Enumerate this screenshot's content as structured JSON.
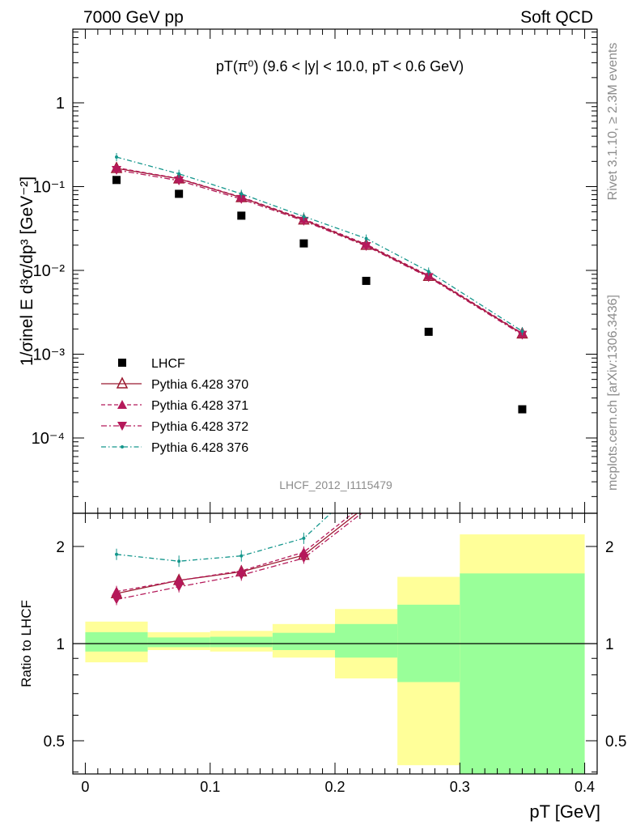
{
  "header": {
    "left": "7000 GeV pp",
    "right": "Soft QCD"
  },
  "side_labels": {
    "rivet": "Rivet 3.1.10, ≥ 2.3M events",
    "mcplots": "mcplots.cern.ch [arXiv:1306.3436]"
  },
  "chart_data": [
    {
      "type": "scatter",
      "panel": "main",
      "title": "pT(π⁰) (9.6 < |y| < 10.0, pT < 0.6 GeV)",
      "ylabel": "1/σinel E d³σ/dp³ [GeV⁻²]",
      "xlim": [
        -0.01,
        0.41
      ],
      "ylim": [
        1e-05,
        5
      ],
      "yscale": "log",
      "ytick_labels": [
        "1",
        "10⁻¹",
        "10⁻²",
        "10⁻³",
        "10⁻⁴"
      ],
      "watermark": "LHCF_2012_I1115479",
      "legend_position": "lower-left",
      "x": [
        0.025,
        0.075,
        0.125,
        0.175,
        0.225,
        0.275,
        0.35
      ],
      "series": [
        {
          "name": "LHCF",
          "style": "square",
          "color": "#000000",
          "values": [
            0.12,
            0.082,
            0.045,
            0.021,
            0.0075,
            0.00185,
            0.00022
          ]
        },
        {
          "name": "Pythia 6.428 370",
          "style": "solid-open-triangle",
          "color": "#9b1b30",
          "values": [
            0.165,
            0.124,
            0.074,
            0.04,
            0.02,
            0.0085,
            0.00175
          ]
        },
        {
          "name": "Pythia 6.428 371",
          "style": "dashed-filled-triangle",
          "color": "#b5195a",
          "values": [
            0.168,
            0.125,
            0.075,
            0.041,
            0.0205,
            0.0087,
            0.00178
          ]
        },
        {
          "name": "Pythia 6.428 372",
          "style": "dashdot-down-triangle",
          "color": "#b5195a",
          "values": [
            0.158,
            0.118,
            0.071,
            0.039,
            0.0195,
            0.0083,
            0.0017
          ]
        },
        {
          "name": "Pythia 6.428 376",
          "style": "dashdot-dot",
          "color": "#14968c",
          "values": [
            0.225,
            0.142,
            0.082,
            0.044,
            0.024,
            0.0097,
            0.00188
          ]
        }
      ]
    },
    {
      "type": "line",
      "panel": "ratio",
      "ylabel": "Ratio to LHCF",
      "xlabel": "pT [GeV]",
      "xlim": [
        -0.01,
        0.41
      ],
      "ylim": [
        0.35,
        2.3
      ],
      "yscale": "log",
      "x_ticks": [
        0,
        0.1,
        0.2,
        0.3,
        0.4
      ],
      "x_tick_labels": [
        "0",
        "0.1",
        "0.2",
        "0.3",
        "0.4"
      ],
      "y_ticks": [
        0.5,
        1,
        2
      ],
      "y_tick_labels": [
        "0.5",
        "1",
        "2"
      ],
      "x": [
        0.025,
        0.075,
        0.125,
        0.175
      ],
      "series": [
        {
          "name": "Pythia 6.428 370",
          "values": [
            1.43,
            1.57,
            1.67,
            1.88
          ]
        },
        {
          "name": "Pythia 6.428 371",
          "values": [
            1.45,
            1.57,
            1.68,
            1.92
          ]
        },
        {
          "name": "Pythia 6.428 372",
          "values": [
            1.37,
            1.5,
            1.63,
            1.84
          ]
        },
        {
          "name": "Pythia 6.428 376",
          "values": [
            1.89,
            1.8,
            1.87,
            2.12
          ]
        }
      ],
      "bands": [
        {
          "x0": 0.0,
          "x1": 0.05,
          "yellow": [
            0.875,
            1.17
          ],
          "green": [
            0.945,
            1.085
          ]
        },
        {
          "x0": 0.05,
          "x1": 0.1,
          "yellow": [
            0.955,
            1.085
          ],
          "green": [
            0.975,
            1.045
          ]
        },
        {
          "x0": 0.1,
          "x1": 0.15,
          "yellow": [
            0.945,
            1.095
          ],
          "green": [
            0.975,
            1.05
          ]
        },
        {
          "x0": 0.15,
          "x1": 0.2,
          "yellow": [
            0.905,
            1.15
          ],
          "green": [
            0.955,
            1.08
          ]
        },
        {
          "x0": 0.2,
          "x1": 0.25,
          "yellow": [
            0.78,
            1.28
          ],
          "green": [
            0.905,
            1.15
          ]
        },
        {
          "x0": 0.25,
          "x1": 0.3,
          "yellow": [
            0.42,
            1.61
          ],
          "green": [
            0.76,
            1.32
          ]
        },
        {
          "x0": 0.3,
          "x1": 0.4,
          "yellow": [
            0.33,
            2.18
          ],
          "green": [
            0.33,
            1.65
          ]
        }
      ]
    }
  ]
}
